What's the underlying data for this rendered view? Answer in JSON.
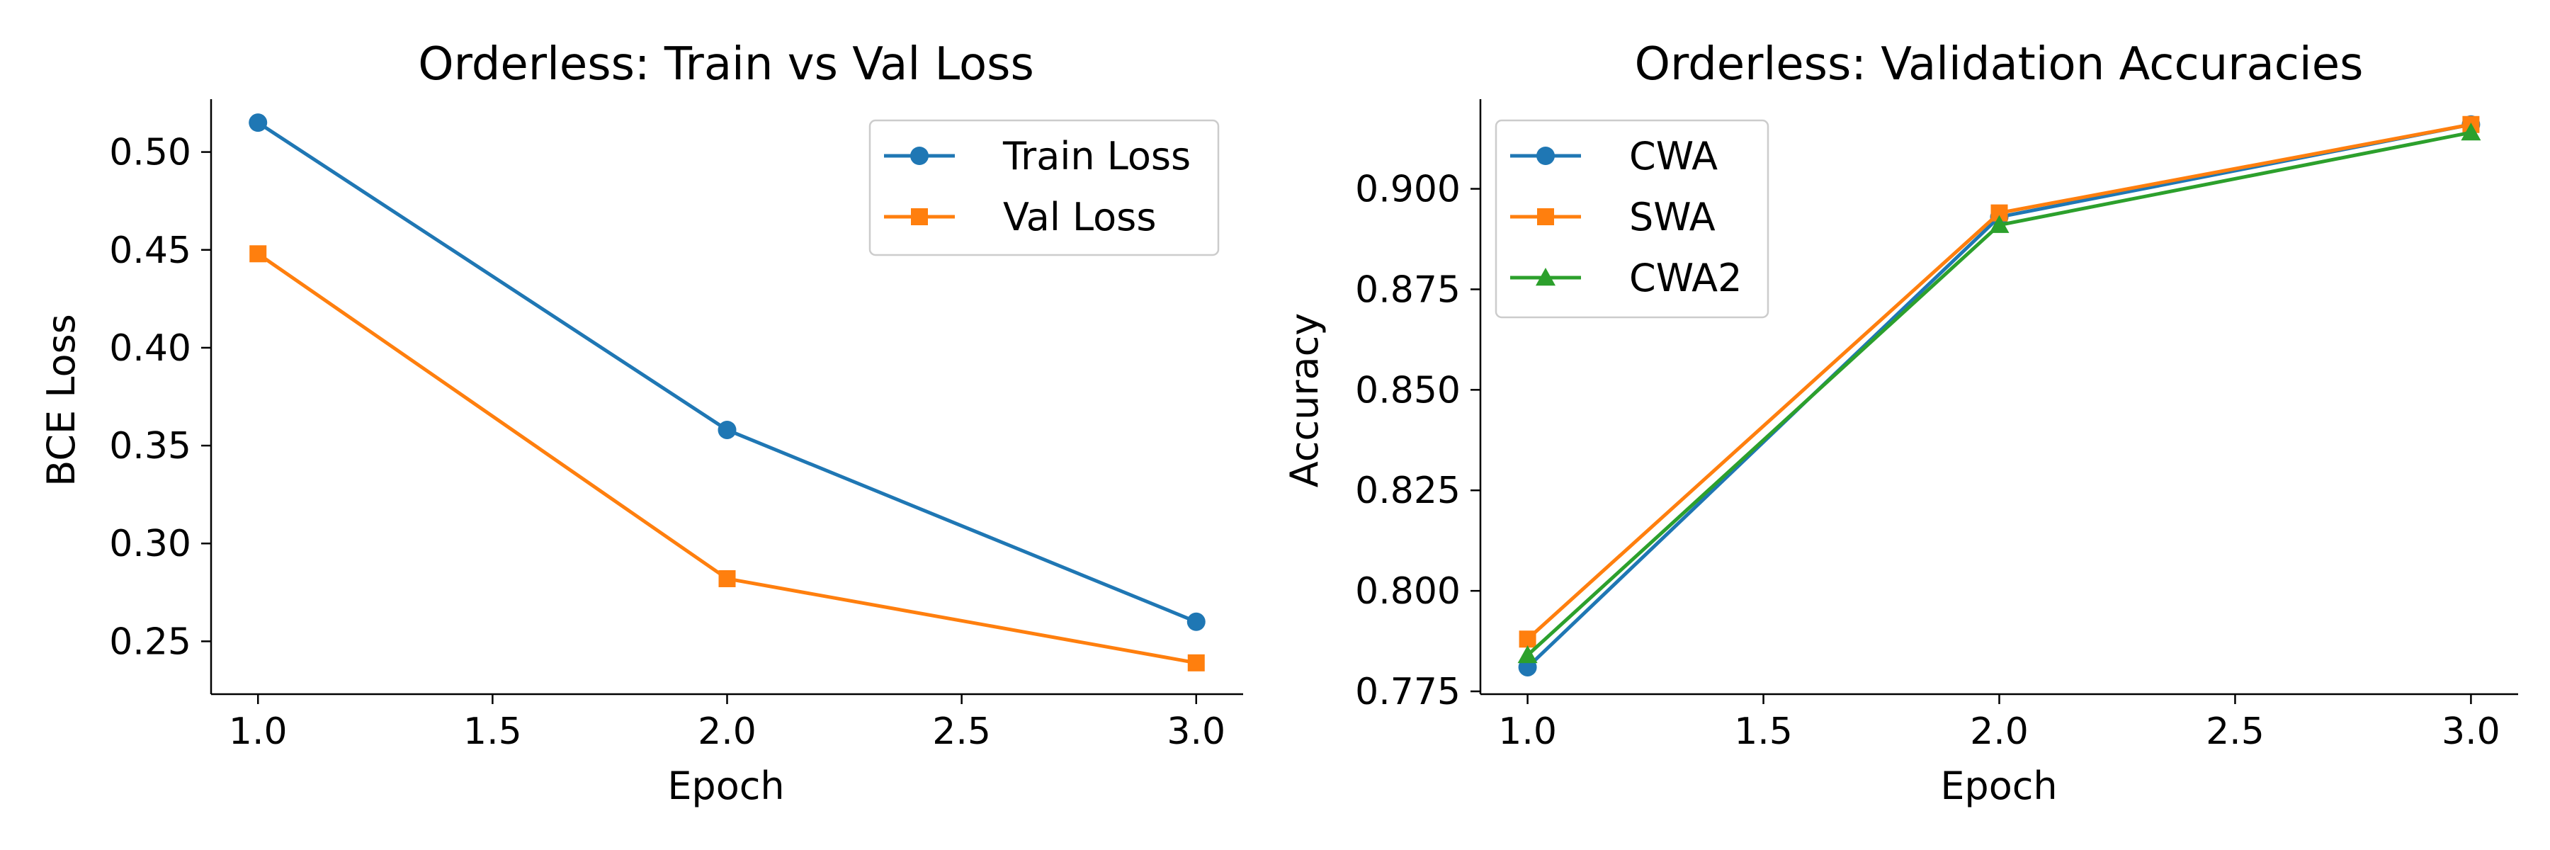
{
  "chart_data": [
    {
      "type": "line",
      "title": "Orderless: Train vs Val Loss",
      "xlabel": "Epoch",
      "ylabel": "BCE Loss",
      "xlim": [
        0.9,
        3.1
      ],
      "ylim": [
        0.223,
        0.527
      ],
      "xticks": [
        1.0,
        1.5,
        2.0,
        2.5,
        3.0
      ],
      "yticks": [
        0.25,
        0.3,
        0.35,
        0.4,
        0.45,
        0.5
      ],
      "xtick_labels": [
        "1.0",
        "1.5",
        "2.0",
        "2.5",
        "3.0"
      ],
      "ytick_labels": [
        "0.25",
        "0.30",
        "0.35",
        "0.40",
        "0.45",
        "0.50"
      ],
      "grid": false,
      "legend_position": "top-right",
      "x": [
        1.0,
        2.0,
        3.0
      ],
      "series": [
        {
          "name": "Train Loss",
          "values": [
            0.515,
            0.358,
            0.26
          ],
          "color": "#1f77b4",
          "marker": "circle"
        },
        {
          "name": "Val Loss",
          "values": [
            0.448,
            0.282,
            0.239
          ],
          "color": "#ff7f0e",
          "marker": "square"
        }
      ]
    },
    {
      "type": "line",
      "title": "Orderless: Validation Accuracies",
      "xlabel": "Epoch",
      "ylabel": "Accuracy",
      "xlim": [
        0.9,
        3.1
      ],
      "ylim": [
        0.7743,
        0.9223
      ],
      "xticks": [
        1.0,
        1.5,
        2.0,
        2.5,
        3.0
      ],
      "yticks": [
        0.775,
        0.8,
        0.825,
        0.85,
        0.875,
        0.9
      ],
      "xtick_labels": [
        "1.0",
        "1.5",
        "2.0",
        "2.5",
        "3.0"
      ],
      "ytick_labels": [
        "0.775",
        "0.800",
        "0.825",
        "0.850",
        "0.875",
        "0.900"
      ],
      "grid": false,
      "legend_position": "top-left",
      "x": [
        1.0,
        2.0,
        3.0
      ],
      "series": [
        {
          "name": "CWA",
          "values": [
            0.781,
            0.893,
            0.916
          ],
          "color": "#1f77b4",
          "marker": "circle"
        },
        {
          "name": "SWA",
          "values": [
            0.788,
            0.894,
            0.916
          ],
          "color": "#ff7f0e",
          "marker": "square"
        },
        {
          "name": "CWA2",
          "values": [
            0.784,
            0.891,
            0.914
          ],
          "color": "#2ca02c",
          "marker": "triangle"
        }
      ]
    }
  ]
}
